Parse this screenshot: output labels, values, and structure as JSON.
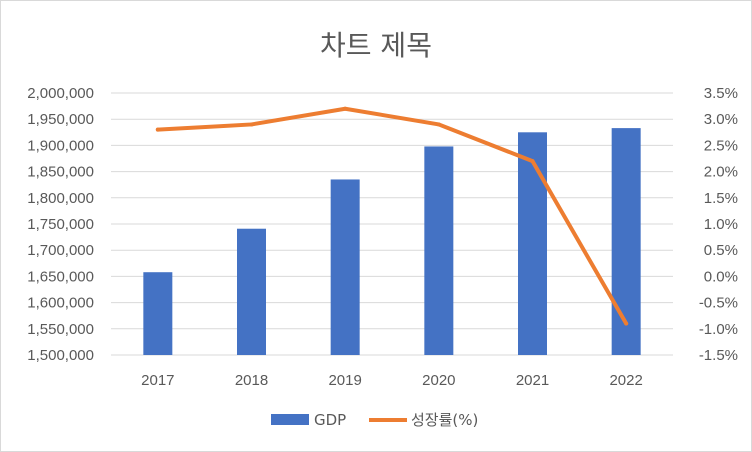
{
  "chart_data": {
    "type": "bar+line",
    "title": "차트 제목",
    "categories": [
      "2017",
      "2018",
      "2019",
      "2020",
      "2021",
      "2022"
    ],
    "series": [
      {
        "name": "GDP",
        "type": "bar",
        "axis": "left",
        "color": "#4472C4",
        "values": [
          1658000,
          1741000,
          1835000,
          1898000,
          1925000,
          1933000
        ]
      },
      {
        "name": "성장률(%)",
        "type": "line",
        "axis": "right",
        "color": "#ED7D31",
        "values": [
          2.8,
          2.9,
          3.2,
          2.9,
          2.2,
          -0.9
        ]
      }
    ],
    "y_left": {
      "min": 1500000,
      "max": 2000000,
      "ticks": [
        "1,500,000",
        "1,550,000",
        "1,600,000",
        "1,650,000",
        "1,700,000",
        "1,750,000",
        "1,800,000",
        "1,850,000",
        "1,900,000",
        "1,950,000",
        "2,000,000"
      ]
    },
    "y_right": {
      "min": -1.5,
      "max": 3.5,
      "ticks": [
        "-1.5%",
        "-1.0%",
        "-0.5%",
        "0.0%",
        "0.5%",
        "1.0%",
        "1.5%",
        "2.0%",
        "2.5%",
        "3.0%",
        "3.5%"
      ]
    },
    "grid": true,
    "legend": "bottom"
  }
}
